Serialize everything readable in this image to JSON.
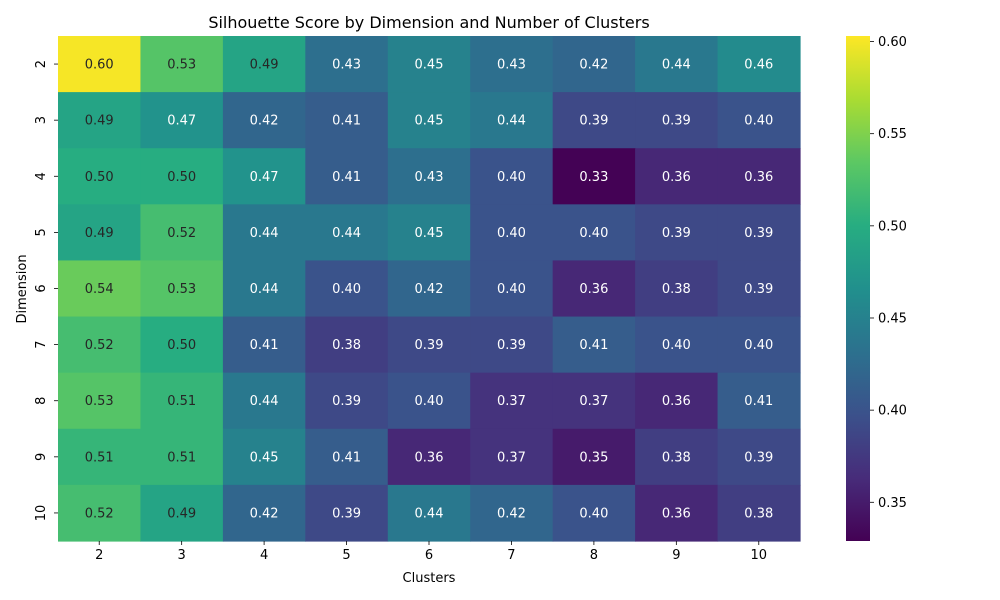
{
  "chart_data": {
    "type": "heatmap",
    "title": "Silhouette Score by Dimension and Number of Clusters",
    "xlabel": "Clusters",
    "ylabel": "Dimension",
    "x_categories": [
      "2",
      "3",
      "4",
      "5",
      "6",
      "7",
      "8",
      "9",
      "10"
    ],
    "y_categories": [
      "2",
      "3",
      "4",
      "5",
      "6",
      "7",
      "8",
      "9",
      "10"
    ],
    "values": [
      [
        0.6,
        0.53,
        0.49,
        0.43,
        0.45,
        0.43,
        0.42,
        0.44,
        0.46
      ],
      [
        0.49,
        0.47,
        0.42,
        0.41,
        0.45,
        0.44,
        0.39,
        0.39,
        0.4
      ],
      [
        0.5,
        0.5,
        0.47,
        0.41,
        0.43,
        0.4,
        0.33,
        0.36,
        0.36
      ],
      [
        0.49,
        0.52,
        0.44,
        0.44,
        0.45,
        0.4,
        0.4,
        0.39,
        0.39
      ],
      [
        0.54,
        0.53,
        0.44,
        0.4,
        0.42,
        0.4,
        0.36,
        0.38,
        0.39
      ],
      [
        0.52,
        0.5,
        0.41,
        0.38,
        0.39,
        0.39,
        0.41,
        0.4,
        0.4
      ],
      [
        0.53,
        0.51,
        0.44,
        0.39,
        0.4,
        0.37,
        0.37,
        0.36,
        0.41
      ],
      [
        0.51,
        0.51,
        0.45,
        0.41,
        0.36,
        0.37,
        0.35,
        0.38,
        0.39
      ],
      [
        0.52,
        0.49,
        0.42,
        0.39,
        0.44,
        0.42,
        0.4,
        0.36,
        0.38
      ]
    ],
    "annotation_format": "0.00",
    "colormap": "viridis",
    "color_range": [
      0.329,
      0.603
    ],
    "colorbar": {
      "ticks": [
        0.35,
        0.4,
        0.45,
        0.5,
        0.55,
        0.6
      ],
      "tick_labels": [
        "0.35",
        "0.40",
        "0.45",
        "0.50",
        "0.55",
        "0.60"
      ]
    },
    "colorbar_placement": "right",
    "grid": false
  }
}
